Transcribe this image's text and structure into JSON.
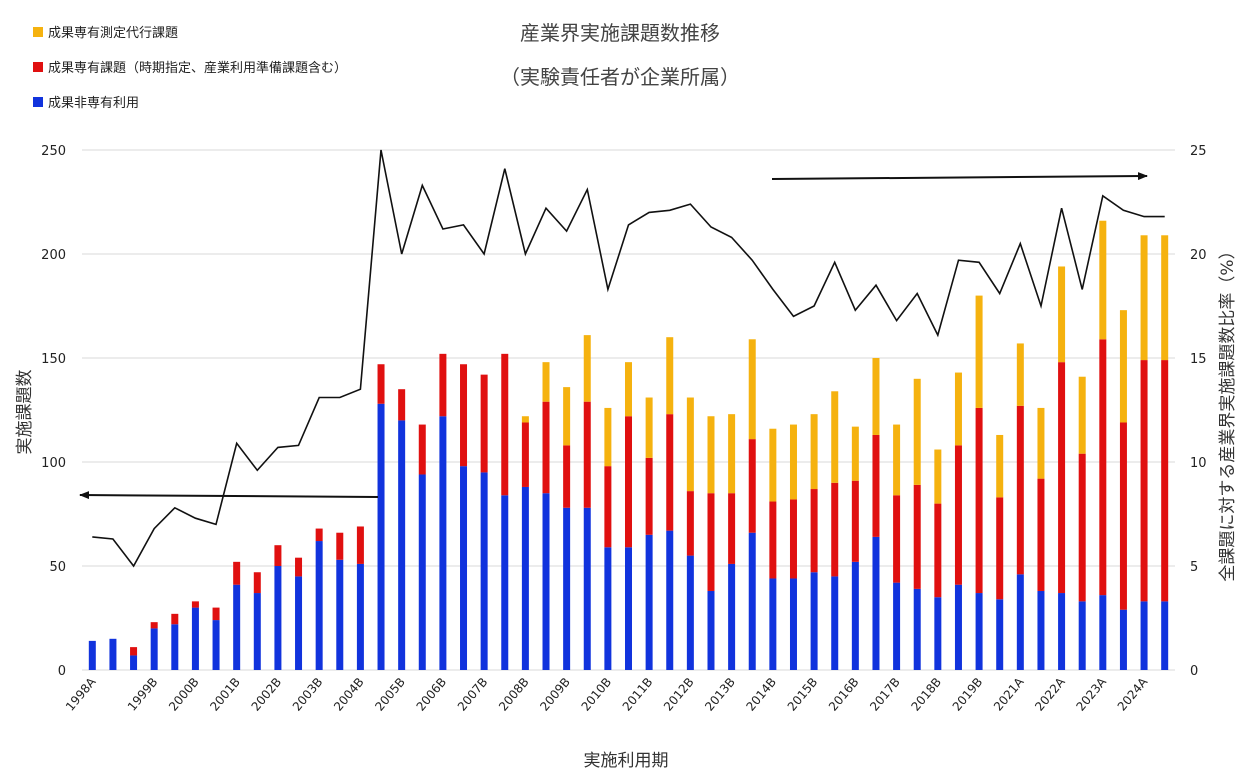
{
  "chart_data": {
    "type": "bar",
    "stacked": true,
    "title": "産業界実施課題数推移",
    "subtitle": "（実験責任者が企業所属）",
    "xlabel": "実施利用期",
    "ylabel": "実施課題数",
    "y2label": "全課題に対する産業界実施課題数比率（%）",
    "ylim": [
      0,
      250
    ],
    "y2lim": [
      0,
      25
    ],
    "yticks": [
      "0",
      "50",
      "100",
      "150",
      "200",
      "250"
    ],
    "y2ticks": [
      "0",
      "5",
      "10",
      "15",
      "20",
      "25"
    ],
    "grid": true,
    "legend_position": "top-left",
    "colors": {
      "exclusive_measure": "#f5b20f",
      "exclusive": "#e01010",
      "nonexclusive": "#1133dd",
      "line": "#111111"
    },
    "categories": [
      "1998A",
      "1998B",
      "1999A",
      "1999B",
      "2000A",
      "2000B",
      "2001A",
      "2001B",
      "2002A",
      "2002B",
      "2003A",
      "2003B",
      "2004A",
      "2004B",
      "2005A",
      "2005B",
      "2006A",
      "2006B",
      "2007A",
      "2007B",
      "2008A",
      "2008B",
      "2009A",
      "2009B",
      "2010A",
      "2010B",
      "2011A",
      "2011B",
      "2012A",
      "2012B",
      "2013A",
      "2013B",
      "2014A",
      "2014B",
      "2015A",
      "2015B",
      "2016A",
      "2016B",
      "2017A",
      "2017B",
      "2018A",
      "2018B",
      "2019A",
      "2019B",
      "2020A",
      "2021A",
      "2021B",
      "2022A",
      "2022B",
      "2023A",
      "2023B",
      "2024A",
      "2024B"
    ],
    "x_tick_labels": [
      "1998A",
      "1999B",
      "2000B",
      "2001B",
      "2002B",
      "2003B",
      "2004B",
      "2005B",
      "2006B",
      "2007B",
      "2008B",
      "2009B",
      "2010B",
      "2011B",
      "2012B",
      "2013B",
      "2014B",
      "2015B",
      "2016B",
      "2017B",
      "2018B",
      "2019B",
      "2021A",
      "2022A",
      "2023A",
      "2024A"
    ],
    "series": [
      {
        "name": "成果非専有利用",
        "color_key": "nonexclusive",
        "values": [
          14,
          15,
          7,
          20,
          22,
          30,
          24,
          41,
          37,
          50,
          45,
          62,
          53,
          51,
          128,
          120,
          94,
          122,
          98,
          95,
          84,
          88,
          85,
          78,
          78,
          59,
          59,
          65,
          67,
          55,
          38,
          51,
          66,
          44,
          44,
          47,
          45,
          52,
          64,
          42,
          39,
          35,
          41,
          37,
          34,
          46,
          38,
          37,
          33,
          36,
          29,
          33,
          33
        ]
      },
      {
        "name": "成果専有課題（時期指定、産業利用準備課題含む）",
        "color_key": "exclusive",
        "values": [
          0,
          0,
          4,
          3,
          5,
          3,
          6,
          11,
          10,
          10,
          9,
          6,
          13,
          18,
          19,
          15,
          24,
          30,
          49,
          47,
          68,
          31,
          44,
          30,
          51,
          39,
          63,
          37,
          56,
          31,
          47,
          34,
          45,
          37,
          38,
          40,
          45,
          39,
          49,
          42,
          50,
          45,
          67,
          89,
          49,
          81,
          54,
          111,
          71,
          123,
          90,
          116,
          116
        ]
      },
      {
        "name": "成果専有測定代行課題",
        "color_key": "exclusive_measure",
        "values": [
          0,
          0,
          0,
          0,
          0,
          0,
          0,
          0,
          0,
          0,
          0,
          0,
          0,
          0,
          0,
          0,
          0,
          0,
          0,
          0,
          0,
          3,
          19,
          28,
          32,
          28,
          26,
          29,
          37,
          45,
          37,
          38,
          48,
          35,
          36,
          36,
          44,
          26,
          37,
          34,
          51,
          26,
          35,
          54,
          30,
          30,
          34,
          46,
          37,
          57,
          54,
          60,
          60
        ]
      }
    ],
    "y2_series": {
      "name": "全課題に対する産業界実施課題数比率",
      "values": [
        6.4,
        6.3,
        5.0,
        6.8,
        7.8,
        7.3,
        7.0,
        10.9,
        9.6,
        10.7,
        10.8,
        13.1,
        13.1,
        13.5,
        25.0,
        20.0,
        23.3,
        21.2,
        21.4,
        20.0,
        24.1,
        20.0,
        22.2,
        21.1,
        23.1,
        18.3,
        21.4,
        22.0,
        22.1,
        22.4,
        21.3,
        20.8,
        19.7,
        18.3,
        17.0,
        17.5,
        19.6,
        17.3,
        18.5,
        16.8,
        18.1,
        16.1,
        19.7,
        19.6,
        18.1,
        20.5,
        17.5,
        22.2,
        18.3,
        22.8,
        22.1,
        21.8,
        21.8
      ]
    },
    "annotations": [
      {
        "type": "arrow",
        "direction": "left",
        "meaning": "左軸"
      },
      {
        "type": "arrow",
        "direction": "right",
        "meaning": "右軸"
      }
    ]
  }
}
